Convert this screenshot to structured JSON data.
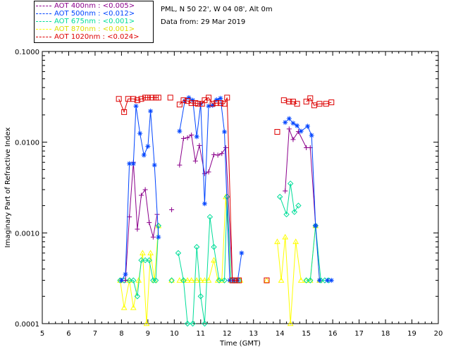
{
  "header": {
    "location": "PML, N 50 22', W 04 08', Alt 0m",
    "date": "Data from: 29 Mar 2019"
  },
  "legend": [
    {
      "label": "AOT  400nm : <0.005>",
      "color": "#8b008b"
    },
    {
      "label": "AOT  500nm : <0.012>",
      "color": "#0044ff"
    },
    {
      "label": "AOT  675nm : <0.001>",
      "color": "#00dd99"
    },
    {
      "label": "AOT  870nm : <0.001>",
      "color": "#ffff00"
    },
    {
      "label": "AOT 1020nm : <0.024>",
      "color": "#dd0000"
    }
  ],
  "chart_data": {
    "type": "line",
    "xlabel": "Time (GMT)",
    "ylabel": "Imaginary Part of Refractive Index",
    "xlim": [
      5,
      20
    ],
    "ylim": [
      0.0001,
      0.1
    ],
    "yscale": "log",
    "xticks": [
      "5",
      "6",
      "7",
      "8",
      "9",
      "10",
      "11",
      "12",
      "13",
      "14",
      "15",
      "16",
      "17",
      "18",
      "19",
      "20"
    ],
    "yticks": [
      "0.0001",
      "0.0010",
      "0.0100",
      "0.1000"
    ],
    "series": [
      {
        "name": "AOT  400nm : <0.005>",
        "color": "#8b008b",
        "marker": "plus",
        "segments": [
          [
            [
              8.0,
              0.0003
            ],
            [
              8.15,
              0.0003
            ],
            [
              8.3,
              0.0015
            ],
            [
              8.45,
              0.006
            ],
            [
              8.6,
              0.0011
            ],
            [
              8.75,
              0.0026
            ],
            [
              8.9,
              0.003
            ],
            [
              9.05,
              0.0013
            ],
            [
              9.2,
              0.0009
            ],
            [
              9.35,
              0.0016
            ]
          ],
          [
            [
              9.9,
              0.0018
            ]
          ],
          [
            [
              10.2,
              0.0056
            ],
            [
              10.35,
              0.011
            ],
            [
              10.5,
              0.0112
            ],
            [
              10.65,
              0.012
            ],
            [
              10.8,
              0.0062
            ],
            [
              10.95,
              0.0092
            ],
            [
              11.15,
              0.0045
            ],
            [
              11.3,
              0.0047
            ],
            [
              11.5,
              0.0073
            ],
            [
              11.65,
              0.0072
            ],
            [
              11.8,
              0.0075
            ],
            [
              11.95,
              0.0087
            ],
            [
              12.2,
              0.0003
            ]
          ],
          [
            [
              14.2,
              0.0029
            ],
            [
              14.35,
              0.014
            ],
            [
              14.5,
              0.0107
            ],
            [
              14.7,
              0.0131
            ],
            [
              15.0,
              0.0087
            ],
            [
              15.15,
              0.0087
            ],
            [
              15.35,
              0.0012
            ]
          ]
        ]
      },
      {
        "name": "AOT  500nm : <0.012>",
        "color": "#0044ff",
        "marker": "asterisk",
        "segments": [
          [
            [
              8.0,
              0.0003
            ],
            [
              8.15,
              0.00035
            ],
            [
              8.3,
              0.0058
            ],
            [
              8.45,
              0.0058
            ],
            [
              8.55,
              0.025
            ],
            [
              8.7,
              0.0125
            ],
            [
              8.85,
              0.0072
            ],
            [
              9.0,
              0.009
            ],
            [
              9.1,
              0.022
            ],
            [
              9.25,
              0.0056
            ],
            [
              9.4,
              0.0009
            ]
          ],
          [
            [
              10.2,
              0.0132
            ],
            [
              10.4,
              0.0285
            ],
            [
              10.55,
              0.031
            ],
            [
              10.7,
              0.029
            ],
            [
              10.85,
              0.0115
            ],
            [
              11.0,
              0.0265
            ],
            [
              11.15,
              0.0021
            ],
            [
              11.3,
              0.025
            ],
            [
              11.45,
              0.0255
            ],
            [
              11.6,
              0.0293
            ],
            [
              11.75,
              0.0305
            ],
            [
              11.9,
              0.013
            ],
            [
              12.1,
              0.0003
            ],
            [
              12.25,
              0.0003
            ],
            [
              12.4,
              0.0003
            ],
            [
              12.55,
              0.0006
            ]
          ],
          [
            [
              14.2,
              0.0165
            ],
            [
              14.35,
              0.0182
            ],
            [
              14.5,
              0.0162
            ],
            [
              14.65,
              0.0152
            ],
            [
              14.8,
              0.0132
            ],
            [
              15.05,
              0.015
            ],
            [
              15.2,
              0.0119
            ],
            [
              15.35,
              0.0012
            ],
            [
              15.5,
              0.0003
            ]
          ],
          [
            [
              15.8,
              0.0003
            ],
            [
              15.95,
              0.0003
            ]
          ]
        ]
      },
      {
        "name": "AOT  675nm : <0.001>",
        "color": "#00dd99",
        "marker": "diamond",
        "segments": [
          [
            [
              7.95,
              0.0003
            ],
            [
              8.1,
              0.0003
            ],
            [
              8.3,
              0.0003
            ],
            [
              8.45,
              0.0003
            ],
            [
              8.6,
              0.0002
            ],
            [
              8.75,
              0.0005
            ],
            [
              8.9,
              0.0005
            ],
            [
              9.05,
              0.0005
            ],
            [
              9.2,
              0.0003
            ],
            [
              9.3,
              0.0003
            ],
            [
              9.4,
              0.0012
            ]
          ],
          [
            [
              9.9,
              0.0003
            ]
          ],
          [
            [
              10.15,
              0.0006
            ],
            [
              10.35,
              0.0003
            ],
            [
              10.5,
              0.0001
            ],
            [
              10.7,
              0.0001
            ],
            [
              10.85,
              0.0007
            ],
            [
              11.0,
              0.0002
            ],
            [
              11.15,
              0.0001
            ],
            [
              11.35,
              0.0015
            ],
            [
              11.5,
              0.0007
            ],
            [
              11.7,
              0.0003
            ],
            [
              11.9,
              0.0003
            ],
            [
              12.0,
              0.0025
            ],
            [
              12.15,
              0.0003
            ],
            [
              12.3,
              0.0003
            ],
            [
              12.45,
              0.0003
            ]
          ],
          [
            [
              14.0,
              0.0025
            ],
            [
              14.25,
              0.0016
            ],
            [
              14.4,
              0.0035
            ],
            [
              14.55,
              0.0017
            ],
            [
              14.7,
              0.002
            ]
          ],
          [
            [
              15.0,
              0.0003
            ],
            [
              15.15,
              0.0003
            ],
            [
              15.35,
              0.0012
            ],
            [
              15.55,
              0.0003
            ],
            [
              15.7,
              0.0003
            ],
            [
              15.85,
              0.0003
            ]
          ]
        ]
      },
      {
        "name": "AOT  870nm : <0.001>",
        "color": "#ffff00",
        "marker": "triangle",
        "segments": [
          [
            [
              7.95,
              0.0003
            ],
            [
              8.1,
              0.00015
            ],
            [
              8.3,
              0.0003
            ],
            [
              8.45,
              0.00015
            ],
            [
              8.65,
              0.0003
            ],
            [
              8.8,
              0.0006
            ],
            [
              8.95,
              0.0001
            ],
            [
              9.1,
              0.0006
            ],
            [
              9.25,
              0.0003
            ],
            [
              9.4,
              0.0012
            ]
          ],
          [
            [
              9.9,
              0.0003
            ]
          ],
          [
            [
              10.2,
              0.0003
            ],
            [
              10.35,
              0.0003
            ],
            [
              10.5,
              0.0003
            ],
            [
              10.65,
              0.0003
            ],
            [
              10.85,
              0.0003
            ],
            [
              11.0,
              0.0003
            ],
            [
              11.15,
              0.0003
            ],
            [
              11.3,
              0.0003
            ],
            [
              11.5,
              0.0005
            ],
            [
              11.65,
              0.0003
            ],
            [
              11.8,
              0.0003
            ],
            [
              11.95,
              0.0025
            ],
            [
              12.15,
              0.0003
            ],
            [
              12.35,
              0.0003
            ],
            [
              12.5,
              0.0003
            ]
          ],
          [
            [
              13.5,
              0.0003
            ]
          ],
          [
            [
              13.9,
              0.0008
            ],
            [
              14.05,
              0.0003
            ],
            [
              14.2,
              0.0009
            ],
            [
              14.4,
              0.0001
            ],
            [
              14.6,
              0.0008
            ],
            [
              14.8,
              0.0003
            ]
          ],
          [
            [
              15.0,
              0.0003
            ],
            [
              15.15,
              0.0003
            ],
            [
              15.35,
              0.0012
            ],
            [
              15.5,
              0.0003
            ]
          ]
        ]
      },
      {
        "name": "AOT 1020nm : <0.024>",
        "color": "#dd0000",
        "marker": "square",
        "segments": [
          [
            [
              7.9,
              0.03
            ],
            [
              8.1,
              0.0215
            ],
            [
              8.25,
              0.03
            ],
            [
              8.45,
              0.03
            ],
            [
              8.6,
              0.029
            ],
            [
              8.75,
              0.03
            ],
            [
              8.9,
              0.031
            ],
            [
              9.0,
              0.031
            ],
            [
              9.15,
              0.031
            ],
            [
              9.3,
              0.031
            ],
            [
              9.4,
              0.031
            ]
          ],
          [
            [
              9.85,
              0.031
            ]
          ],
          [
            [
              10.2,
              0.026
            ],
            [
              10.35,
              0.029
            ],
            [
              10.5,
              0.0285
            ],
            [
              10.65,
              0.027
            ],
            [
              10.8,
              0.027
            ],
            [
              10.9,
              0.0265
            ],
            [
              11.05,
              0.0265
            ],
            [
              11.15,
              0.029
            ],
            [
              11.3,
              0.031
            ],
            [
              11.45,
              0.0265
            ],
            [
              11.6,
              0.027
            ],
            [
              11.75,
              0.027
            ],
            [
              11.9,
              0.0265
            ],
            [
              12.0,
              0.031
            ],
            [
              12.2,
              0.0003
            ],
            [
              12.3,
              0.0003
            ],
            [
              12.45,
              0.0003
            ]
          ],
          [
            [
              13.5,
              0.0003
            ]
          ],
          [
            [
              13.9,
              0.013
            ]
          ],
          [
            [
              14.15,
              0.029
            ],
            [
              14.35,
              0.028
            ],
            [
              14.5,
              0.028
            ],
            [
              14.65,
              0.0265
            ]
          ],
          [
            [
              15.0,
              0.028
            ],
            [
              15.15,
              0.0305
            ],
            [
              15.3,
              0.0255
            ],
            [
              15.5,
              0.0265
            ],
            [
              15.75,
              0.0265
            ],
            [
              15.95,
              0.0275
            ]
          ]
        ]
      }
    ]
  }
}
